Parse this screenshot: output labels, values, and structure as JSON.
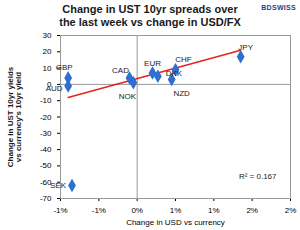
{
  "chart_data": {
    "type": "scatter",
    "title": "Change in UST 10yr spreads over the last week vs change in USD/FX",
    "x_label": "Change in USD vs currency",
    "y_label": "Change in UST 10yr yields vs currency's 10yr yield",
    "logo": "BDSWISS",
    "annotation": "R² = 0.167",
    "labels": [
      "GBP",
      "AUD",
      "SEK",
      "CAD",
      "NOK",
      "EUR",
      "DKK",
      "CHF",
      "NZD",
      "JPY"
    ],
    "x": [
      -0.9,
      -0.9,
      -0.85,
      -0.1,
      -0.05,
      0.2,
      0.27,
      0.5,
      0.45,
      1.35
    ],
    "values": [
      4,
      -1,
      -62,
      4,
      1,
      7,
      5,
      9,
      3,
      17
    ],
    "color": "#2e6fd0",
    "marker": "diamond",
    "trendline": {
      "x": [
        -0.9,
        1.35
      ],
      "y": [
        -8,
        21
      ],
      "color": "#e8231c"
    },
    "xlim": [
      -1,
      2
    ],
    "xticks": [
      {
        "value": -1,
        "label": "-1%"
      },
      {
        "value": -0.5,
        "label": "-1%"
      },
      {
        "value": 0,
        "label": "0%"
      },
      {
        "value": 0.5,
        "label": "1%"
      },
      {
        "value": 1,
        "label": "1%"
      },
      {
        "value": 1.5,
        "label": "2%"
      },
      {
        "value": 2,
        "label": "2%"
      }
    ],
    "ylim": [
      -70,
      30
    ],
    "yticks": [
      -70,
      -60,
      -50,
      -40,
      -30,
      -20,
      -10,
      0,
      10,
      20,
      30
    ],
    "grid": false
  }
}
